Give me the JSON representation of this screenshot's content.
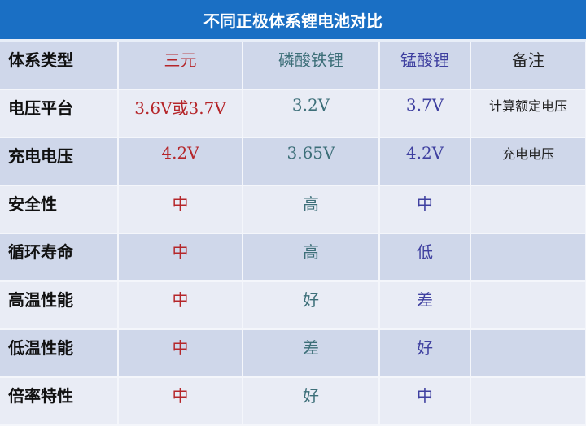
{
  "title": "不同正极体系锂电池对比",
  "colors": {
    "title_bg": "#1a6fc4",
    "ternary": "#b5262a",
    "lfp": "#3d6f79",
    "lmo": "#3f40a0"
  },
  "header": [
    "体系类型",
    "三元",
    "磷酸铁锂",
    "锰酸锂",
    "备注"
  ],
  "rows": [
    [
      "电压平台",
      "3.6V或3.7V",
      "3.2V",
      "3.7V",
      "计算额定电压"
    ],
    [
      "充电电压",
      "4.2V",
      "3.65V",
      "4.2V",
      "充电电压"
    ],
    [
      "安全性",
      "中",
      "高",
      "中",
      ""
    ],
    [
      "循环寿命",
      "中",
      "高",
      "低",
      ""
    ],
    [
      "高温性能",
      "中",
      "好",
      "差",
      ""
    ],
    [
      "低温性能",
      "中",
      "差",
      "好",
      ""
    ],
    [
      "倍率特性",
      "中",
      "好",
      "中",
      ""
    ]
  ]
}
